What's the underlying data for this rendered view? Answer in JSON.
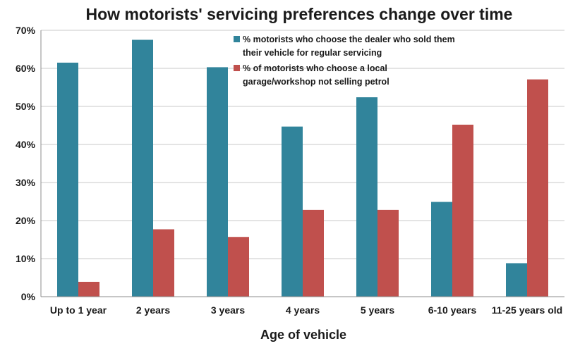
{
  "chart_data": {
    "type": "bar",
    "title": "How motorists' servicing preferences change over time",
    "xlabel": "Age of vehicle",
    "ylabel": "",
    "categories": [
      "Up to 1 year",
      "2 years",
      "3 years",
      "4 years",
      "5 years",
      "6-10 years",
      "11-25 years old"
    ],
    "series": [
      {
        "name": "% motorists who choose the dealer who sold them their vehicle for regular servicing",
        "legend_lines": [
          "% motorists who choose the dealer who sold them",
          "their vehicle for regular servicing"
        ],
        "color": "#31849b",
        "values": [
          61.5,
          67.5,
          60.3,
          44.7,
          52.4,
          24.9,
          8.8
        ]
      },
      {
        "name": "% of motorists who choose a local garage/workshop not selling petrol",
        "legend_lines": [
          "% of motorists who choose a local",
          "garage/workshop not selling petrol"
        ],
        "color": "#c0504d",
        "values": [
          3.9,
          17.7,
          15.7,
          22.8,
          22.8,
          45.2,
          57.1
        ]
      }
    ],
    "ylim": [
      0,
      70
    ],
    "yticks": [
      0,
      10,
      20,
      30,
      40,
      50,
      60,
      70
    ],
    "ytick_labels": [
      "0%",
      "10%",
      "20%",
      "30%",
      "40%",
      "50%",
      "60%",
      "70%"
    ],
    "grid": true,
    "legend_position": "top-center"
  }
}
